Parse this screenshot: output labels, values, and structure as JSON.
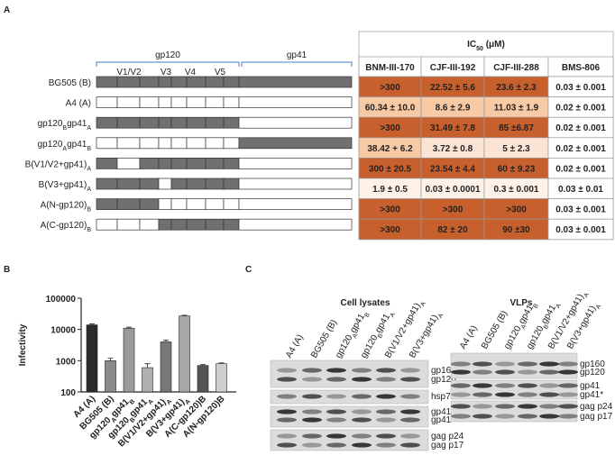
{
  "panel_labels": [
    "A",
    "B",
    "C"
  ],
  "panel_a": {
    "region_headers": [
      "gp120",
      "gp41"
    ],
    "region_labels": [
      "V1/V2",
      "V3",
      "V4",
      "V5"
    ],
    "constructs": [
      [
        "BG505 (B)"
      ],
      [
        "A4 (A)"
      ],
      [
        "gp120",
        "B",
        "gp41",
        "A"
      ],
      [
        "gp120",
        "A",
        "gp41",
        "B"
      ],
      [
        "B(V1/V2+gp41)",
        "A"
      ],
      [
        "B(V3+gp41)",
        "A"
      ],
      [
        "A(N-gp120)",
        "B"
      ],
      [
        "A(C-gp120)",
        "B"
      ]
    ],
    "table": {
      "title": [
        "IC",
        "50",
        " (μM)"
      ],
      "columns": [
        "BNM-III-170",
        "CJF-III-192",
        "CJF-III-288",
        "BMS-806"
      ],
      "rows": [
        [
          ">300",
          "22.52 ± 5.6",
          "23.6 ± 2.3",
          "0.03 ± 0.001"
        ],
        [
          "60.34 ± 10.0",
          "8.6 ± 2.9",
          "11.03 ± 1.9",
          "0.02 ± 0.001"
        ],
        [
          ">300",
          "31.49 ± 7.8",
          "85 ±6.87",
          "0.02 ± 0.001"
        ],
        [
          "38.42 + 6.2",
          "3.72 ± 0.8",
          "5 ± 2.3",
          "0.02 ± 0.001"
        ],
        [
          "300 ± 20.5",
          "23.54 ± 4.4",
          "60 ± 9.23",
          "0.02 ± 0.001"
        ],
        [
          "1.9 ± 0.5",
          "0.03 ± 0.0001",
          "0.3 ± 0.001",
          "0.03 ± 0.01"
        ],
        [
          ">300",
          ">300",
          ">300",
          "0.03 ± 0.001"
        ],
        [
          ">300",
          "82 ± 20",
          "90 ±30",
          "0.03 ± 0.001"
        ]
      ],
      "cell_colors": [
        [
          "#c8602e",
          "#c8602e",
          "#c8602e",
          "#ffffff"
        ],
        [
          "#f7c9a4",
          "#f7c9a4",
          "#f7c9a4",
          "#ffffff"
        ],
        [
          "#c8602e",
          "#c8602e",
          "#c8602e",
          "#ffffff"
        ],
        [
          "#f7c9a4",
          "#fbe4d3",
          "#fbe4d3",
          "#ffffff"
        ],
        [
          "#c8602e",
          "#c8602e",
          "#c8602e",
          "#ffffff"
        ],
        [
          "#fdf1e8",
          "#fdf1e8",
          "#fdf1e8",
          "#ffffff"
        ],
        [
          "#c8602e",
          "#c8602e",
          "#c8602e",
          "#ffffff"
        ],
        [
          "#c8602e",
          "#c8602e",
          "#c8602e",
          "#ffffff"
        ]
      ]
    }
  },
  "chart_data": {
    "type": "bar",
    "ylabel": "Infectivity",
    "categories": [
      [
        "A4 (A)"
      ],
      [
        "BG505 (B)"
      ],
      [
        "gp120",
        "A",
        "gp41",
        "B"
      ],
      [
        "gp120",
        "B",
        "gp41",
        "A"
      ],
      [
        "B(V1/V2+gp41)",
        "A"
      ],
      [
        "B(V3+gp41)",
        "A"
      ],
      [
        "A(C-gp120)B"
      ],
      [
        "A(N-gp120)B"
      ]
    ],
    "values": [
      14000,
      1000,
      11000,
      600,
      4000,
      27000,
      700,
      800
    ],
    "errors": [
      1000,
      200,
      800,
      200,
      500,
      1500,
      50,
      50
    ],
    "colors": [
      "#2b2b2b",
      "#8a8a8a",
      "#9a9a9a",
      "#b0b0b0",
      "#777777",
      "#a8a8a8",
      "#555555",
      "#cfcfcf"
    ],
    "ylim": [
      100,
      100000
    ],
    "yticks": [
      100,
      1000,
      10000,
      100000
    ],
    "log_scale": true
  },
  "panel_c": {
    "blots": [
      {
        "title": "Cell lysates",
        "lanes": [
          [
            "A4 (A)"
          ],
          [
            "BG505 (B)"
          ],
          [
            "gp120",
            "A",
            "gp41",
            "B"
          ],
          [
            "gp120",
            "B",
            "gp41",
            "A"
          ],
          [
            "B(V1/V2+gp41)",
            "A"
          ],
          [
            "B(V3+gp41)",
            "A"
          ]
        ],
        "bands": [
          "gp160",
          "gp120",
          "hsp70",
          "gp41",
          "gp41*",
          "gag p24",
          "gag p17"
        ]
      },
      {
        "title": "VLPs",
        "lanes": [
          [
            "A4 (A)"
          ],
          [
            "BG505 (B)"
          ],
          [
            "gp120",
            "A",
            "gp41",
            "B"
          ],
          [
            "gp120",
            "B",
            "gp41",
            "A"
          ],
          [
            "B(V1/V2+gp41)",
            "A"
          ],
          [
            "B(V3+gp41)",
            "A"
          ]
        ],
        "bands": [
          "gp160",
          "gp120",
          "gp41",
          "gp41*",
          "gag p24",
          "gag p17"
        ]
      }
    ]
  }
}
